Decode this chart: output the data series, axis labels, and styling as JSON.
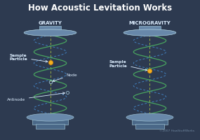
{
  "title": "How Acoustic Levitation Works",
  "title_fontsize": 8.5,
  "title_color": "#ffffff",
  "outer_bg": "#2d3a50",
  "panel_bg": "#3d5475",
  "panel_border": "#6888aa",
  "label_left": "GRAVITY",
  "label_right": "MICROGRAVITY",
  "label_color": "#ddeeff",
  "label_fontsize": 5.0,
  "helix_solid": "#4aaa60",
  "helix_dashed": "#4488cc",
  "axis_color": "#b8d040",
  "particle_color": "#f5b020",
  "particle_edge": "#c88010",
  "node_color": "#99bbcc",
  "annotation_color": "#ddeeff",
  "annotation_fontsize": 4.2,
  "copyright": "©2007 HowStuffWorks",
  "copyright_fontsize": 3.2,
  "copyright_color": "#7088a0",
  "transducer_fc": "#6888aa",
  "transducer_ec": "#99bbcc",
  "title_bg": "#1e2535"
}
